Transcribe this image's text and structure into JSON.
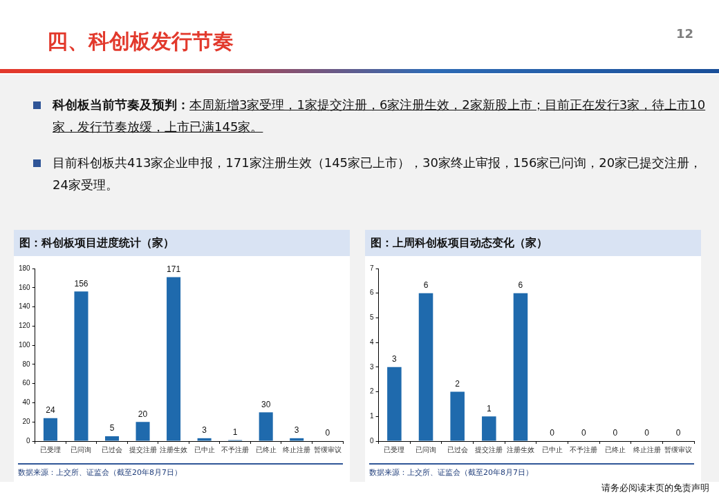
{
  "chart_data": [
    {
      "type": "other",
      "title": "四、科创板发行节奏",
      "annotations": [
        "科创板当前节奏及预判：",
        "本周新增3家受理，1家提交注册，6家注册生效，2家新股上市；目前正在发行3家，待上市10家，发行节奏放缓，上市已满145家。",
        "目前科创板共413家企业申报，171家注册生效（145家已上市），30家终止审报，156家已问询，20家已提交注册，24家受理。",
        "12",
        "请务必阅读末页的免责声明"
      ]
    },
    {
      "type": "bar",
      "title": "图：科创板项目进度统计（家）",
      "categories": [
        "已受理",
        "已问询",
        "已过会",
        "提交注册",
        "注册生效",
        "已中止",
        "不予注册",
        "已终止",
        "终止注册",
        "暂缓审议"
      ],
      "values": [
        24,
        156,
        5,
        20,
        171,
        3,
        1,
        30,
        3,
        0
      ],
      "color": "#1f6aad",
      "ylim": [
        0,
        180
      ],
      "yticks": [
        0,
        20,
        40,
        60,
        80,
        100,
        120,
        140,
        160,
        180
      ],
      "data_labels": true,
      "legend": false,
      "annotations": [
        "数据来源：上交所、证监会（截至20年8月7日）"
      ]
    },
    {
      "type": "bar",
      "title": "图：上周科创板项目动态变化（家）",
      "categories": [
        "已受理",
        "已问询",
        "已过会",
        "提交注册",
        "注册生效",
        "已中止",
        "不予注册",
        "已终止",
        "终止注册",
        "暂缓审议"
      ],
      "values": [
        3,
        6,
        2,
        1,
        6,
        0,
        0,
        0,
        0,
        0
      ],
      "color": "#1f6aad",
      "ylim": [
        0,
        7
      ],
      "yticks": [
        0,
        1,
        2,
        3,
        4,
        5,
        6,
        7
      ],
      "data_labels": true,
      "legend": false,
      "annotations": [
        "数据来源：上交所、证监会（截至20年8月7日）"
      ]
    }
  ]
}
